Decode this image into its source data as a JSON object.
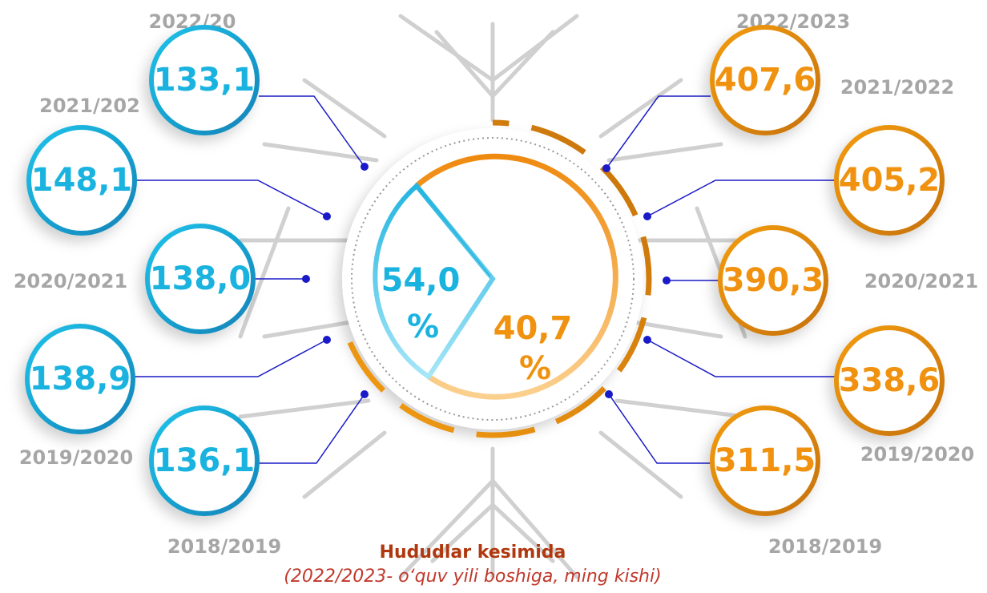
{
  "left": [
    {
      "label": "2022/20",
      "value": "133,1"
    },
    {
      "label": "2021/202",
      "value": "148,1"
    },
    {
      "label": "2020/2021",
      "value": "138,0"
    },
    {
      "label": "2019/2020",
      "value": "138,9"
    },
    {
      "label": "2018/2019",
      "value": "136,1"
    }
  ],
  "right": [
    {
      "label": "2022/2023",
      "value": "407,6"
    },
    {
      "label": "2021/2022",
      "value": "405,2"
    },
    {
      "label": "2020/2021",
      "value": "390,3"
    },
    {
      "label": "2019/2020",
      "value": "338,6"
    },
    {
      "label": "2018/2019",
      "value": "311,5"
    }
  ],
  "center": {
    "left_value": "54,0",
    "left_unit": "%",
    "right_value": "40,7",
    "right_unit": "%"
  },
  "title": "Hududlar kesimida",
  "subtitle": "(2022/2023- o‘quv yili boshiga, ming kishi)"
}
